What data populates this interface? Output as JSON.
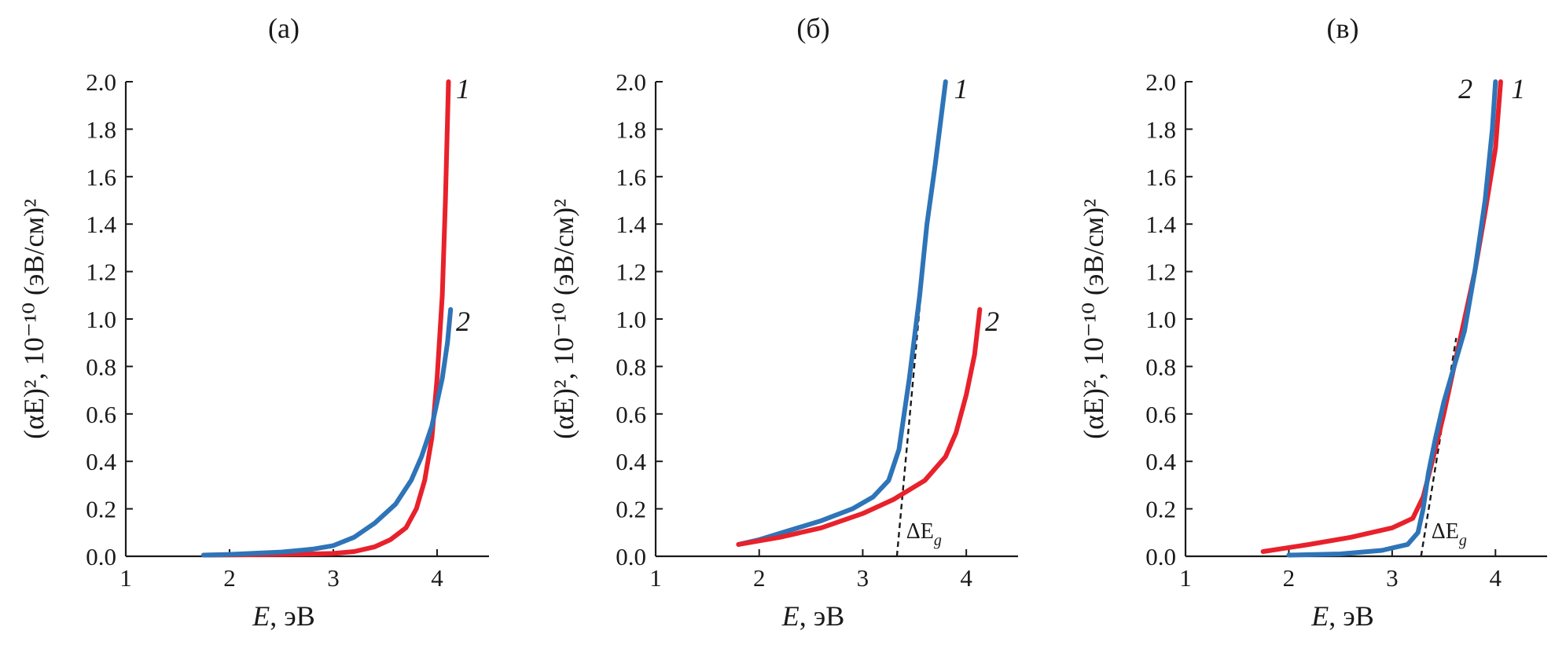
{
  "chart_data": [
    {
      "type": "line",
      "panel_label": "(а)",
      "xlabel": {
        "var": "E",
        "rest": ", эВ"
      },
      "ylabel": "(αE)², 10⁻¹⁰ (эВ/см)²",
      "xlim": [
        1,
        4.5
      ],
      "ylim": [
        0,
        2.0
      ],
      "xticks": [
        "1",
        "2",
        "3",
        "4"
      ],
      "yticks": [
        "0.0",
        "0.2",
        "0.4",
        "0.6",
        "0.8",
        "1.0",
        "1.2",
        "1.4",
        "1.6",
        "1.8",
        "2.0"
      ],
      "series": [
        {
          "name": "1",
          "color": "#e8212b",
          "points": [
            [
              1.75,
              0.005
            ],
            [
              2.0,
              0.006
            ],
            [
              2.5,
              0.008
            ],
            [
              2.8,
              0.01
            ],
            [
              3.0,
              0.012
            ],
            [
              3.2,
              0.02
            ],
            [
              3.4,
              0.04
            ],
            [
              3.55,
              0.07
            ],
            [
              3.7,
              0.12
            ],
            [
              3.8,
              0.2
            ],
            [
              3.88,
              0.32
            ],
            [
              3.95,
              0.5
            ],
            [
              4.0,
              0.75
            ],
            [
              4.05,
              1.1
            ],
            [
              4.08,
              1.5
            ],
            [
              4.11,
              2.0
            ]
          ]
        },
        {
          "name": "2",
          "color": "#2e74b8",
          "points": [
            [
              1.75,
              0.005
            ],
            [
              2.0,
              0.008
            ],
            [
              2.5,
              0.018
            ],
            [
              2.8,
              0.03
            ],
            [
              3.0,
              0.045
            ],
            [
              3.2,
              0.08
            ],
            [
              3.4,
              0.14
            ],
            [
              3.6,
              0.22
            ],
            [
              3.75,
              0.32
            ],
            [
              3.85,
              0.42
            ],
            [
              3.95,
              0.55
            ],
            [
              4.05,
              0.75
            ],
            [
              4.1,
              0.9
            ],
            [
              4.13,
              1.04
            ]
          ]
        }
      ],
      "annotations": [
        {
          "text": "1",
          "x": 4.25,
          "y": 1.97
        },
        {
          "text": "2",
          "x": 4.25,
          "y": 0.99
        }
      ]
    },
    {
      "type": "line",
      "panel_label": "(б)",
      "xlabel": {
        "var": "E",
        "rest": ", эВ"
      },
      "ylabel": "(αE)², 10⁻¹⁰ (эВ/см)²",
      "xlim": [
        1,
        4.5
      ],
      "ylim": [
        0,
        2.0
      ],
      "xticks": [
        "1",
        "2",
        "3",
        "4"
      ],
      "yticks": [
        "0.0",
        "0.2",
        "0.4",
        "0.6",
        "0.8",
        "1.0",
        "1.2",
        "1.4",
        "1.6",
        "1.8",
        "2.0"
      ],
      "series": [
        {
          "name": "1",
          "color": "#2e74b8",
          "points": [
            [
              1.8,
              0.05
            ],
            [
              2.0,
              0.07
            ],
            [
              2.3,
              0.11
            ],
            [
              2.6,
              0.15
            ],
            [
              2.9,
              0.2
            ],
            [
              3.1,
              0.25
            ],
            [
              3.25,
              0.32
            ],
            [
              3.35,
              0.45
            ],
            [
              3.45,
              0.75
            ],
            [
              3.55,
              1.1
            ],
            [
              3.62,
              1.4
            ],
            [
              3.7,
              1.65
            ],
            [
              3.8,
              2.0
            ]
          ]
        },
        {
          "name": "2",
          "color": "#e8212b",
          "points": [
            [
              1.8,
              0.05
            ],
            [
              2.2,
              0.08
            ],
            [
              2.6,
              0.12
            ],
            [
              3.0,
              0.18
            ],
            [
              3.3,
              0.24
            ],
            [
              3.6,
              0.32
            ],
            [
              3.8,
              0.42
            ],
            [
              3.9,
              0.52
            ],
            [
              4.0,
              0.68
            ],
            [
              4.08,
              0.85
            ],
            [
              4.13,
              1.04
            ]
          ]
        }
      ],
      "tangent": {
        "points": [
          [
            3.33,
            0.0
          ],
          [
            3.64,
            1.48
          ]
        ]
      },
      "gap_marker": {
        "symbol": "ΔE",
        "subscript": "g",
        "x": 3.42,
        "y": 0.11
      },
      "annotations": [
        {
          "text": "1",
          "x": 3.95,
          "y": 1.97
        },
        {
          "text": "2",
          "x": 4.25,
          "y": 0.99
        }
      ]
    },
    {
      "type": "line",
      "panel_label": "(в)",
      "xlabel": {
        "var": "E",
        "rest": ", эВ"
      },
      "ylabel": "(αE)², 10⁻¹⁰ (эВ/см)²",
      "xlim": [
        1,
        4.5
      ],
      "ylim": [
        0,
        2.0
      ],
      "xticks": [
        "1",
        "2",
        "3",
        "4"
      ],
      "yticks": [
        "0.0",
        "0.2",
        "0.4",
        "0.6",
        "0.8",
        "1.0",
        "1.2",
        "1.4",
        "1.6",
        "1.8",
        "2.0"
      ],
      "series": [
        {
          "name": "1",
          "color": "#e8212b",
          "points": [
            [
              1.75,
              0.02
            ],
            [
              2.2,
              0.05
            ],
            [
              2.6,
              0.08
            ],
            [
              3.0,
              0.12
            ],
            [
              3.2,
              0.16
            ],
            [
              3.3,
              0.25
            ],
            [
              3.4,
              0.42
            ],
            [
              3.5,
              0.6
            ],
            [
              3.6,
              0.8
            ],
            [
              3.7,
              1.0
            ],
            [
              3.8,
              1.2
            ],
            [
              3.9,
              1.45
            ],
            [
              4.0,
              1.72
            ],
            [
              4.05,
              2.0
            ]
          ]
        },
        {
          "name": "2",
          "color": "#2e74b8",
          "points": [
            [
              2.0,
              0.005
            ],
            [
              2.5,
              0.01
            ],
            [
              2.9,
              0.025
            ],
            [
              3.15,
              0.05
            ],
            [
              3.25,
              0.1
            ],
            [
              3.3,
              0.2
            ],
            [
              3.35,
              0.35
            ],
            [
              3.42,
              0.5
            ],
            [
              3.5,
              0.65
            ],
            [
              3.6,
              0.8
            ],
            [
              3.7,
              0.95
            ],
            [
              3.8,
              1.2
            ],
            [
              3.9,
              1.5
            ],
            [
              3.97,
              1.8
            ],
            [
              4.0,
              2.0
            ]
          ]
        }
      ],
      "tangent": {
        "points": [
          [
            3.28,
            0.0
          ],
          [
            3.62,
            0.92
          ]
        ]
      },
      "gap_marker": {
        "symbol": "ΔE",
        "subscript": "g",
        "x": 3.38,
        "y": 0.11
      },
      "annotations": [
        {
          "text": "2",
          "x": 3.71,
          "y": 1.97
        },
        {
          "text": "1",
          "x": 4.22,
          "y": 1.97
        }
      ]
    }
  ]
}
